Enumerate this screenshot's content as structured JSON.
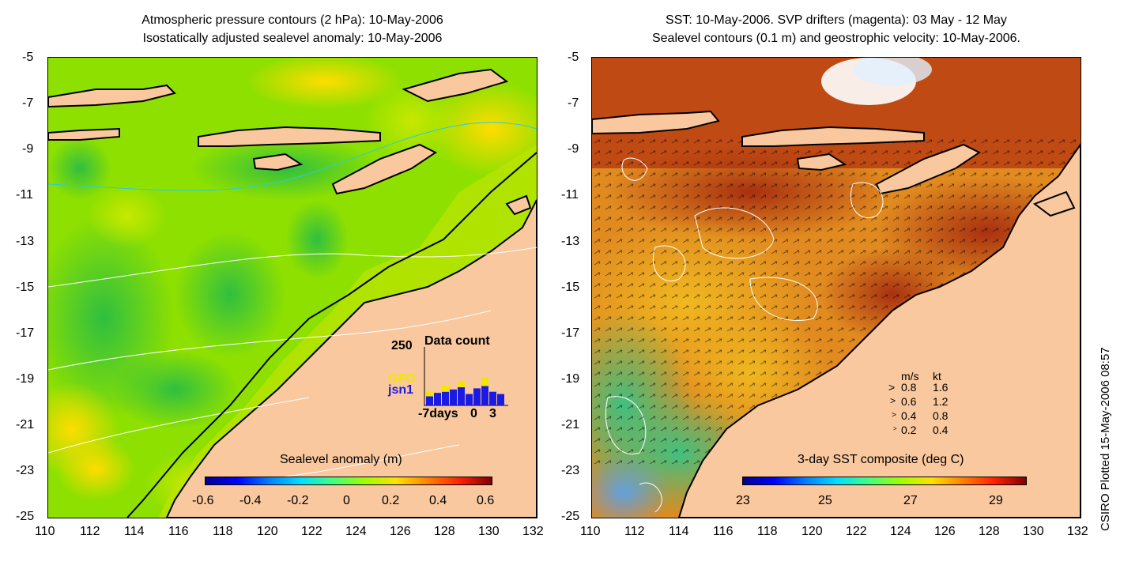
{
  "left_panel": {
    "title_line1": "Atmospheric pressure contours (2 hPa): 10-May-2006",
    "title_line2": "Isostatically adjusted sealevel anomaly: 10-May-2006",
    "colorbar_label": "Sealevel anomaly (m)",
    "colorbar_ticks": [
      "-0.6",
      "-0.4",
      "-0.2",
      "0",
      "0.2",
      "0.4",
      "0.6"
    ],
    "colorbar_range": [
      -0.6,
      0.6
    ],
    "inset": {
      "max_label": "250",
      "title": "Data count",
      "series_names": [
        "GFO",
        "jsn1"
      ],
      "series_colors": [
        "#f2e600",
        "#1a1ae0"
      ],
      "x_labels": [
        "-7days",
        "0",
        "3"
      ],
      "jsn1_counts": [
        40,
        55,
        60,
        70,
        80,
        50,
        75,
        85,
        60,
        50
      ],
      "gfo_counts": [
        20,
        0,
        30,
        0,
        25,
        0,
        0,
        40,
        0,
        0
      ]
    }
  },
  "right_panel": {
    "title_line1": "SST: 10-May-2006. SVP drifters (magenta): 03 May - 12 May",
    "title_line2": "Sealevel contours (0.1 m) and geostrophic velocity: 10-May-2006.",
    "colorbar_label": "3-day SST composite (deg C)",
    "colorbar_ticks": [
      "23",
      "25",
      "27",
      "29"
    ],
    "colorbar_range": [
      23,
      29.6
    ],
    "legend_header_ms": "m/s",
    "legend_header_kt": "kt",
    "legend_rows": [
      {
        "ms": "0.8",
        "kt": "1.6"
      },
      {
        "ms": "0.6",
        "kt": "1.2"
      },
      {
        "ms": "0.4",
        "kt": "0.8"
      },
      {
        "ms": "0.2",
        "kt": "0.4"
      }
    ]
  },
  "axes": {
    "lat_labels": [
      "-5",
      "-7",
      "-9",
      "-11",
      "-13",
      "-15",
      "-17",
      "-19",
      "-21",
      "-23",
      "-25"
    ],
    "lon_labels": [
      "110",
      "112",
      "114",
      "116",
      "118",
      "120",
      "122",
      "124",
      "126",
      "128",
      "130",
      "132"
    ],
    "lat_range": [
      -25,
      -5
    ],
    "lon_range": [
      110,
      132
    ]
  },
  "footer": {
    "plot_stamp": "CSIRO Plotted 15-May-2006 08:57"
  },
  "colors": {
    "land": "#f9c89e",
    "sla_base": "#8ee000",
    "sst_base": "#e08a20",
    "coastline": "#000000",
    "contour": "#ffffff",
    "pressure_contour": "#22d0e0"
  }
}
